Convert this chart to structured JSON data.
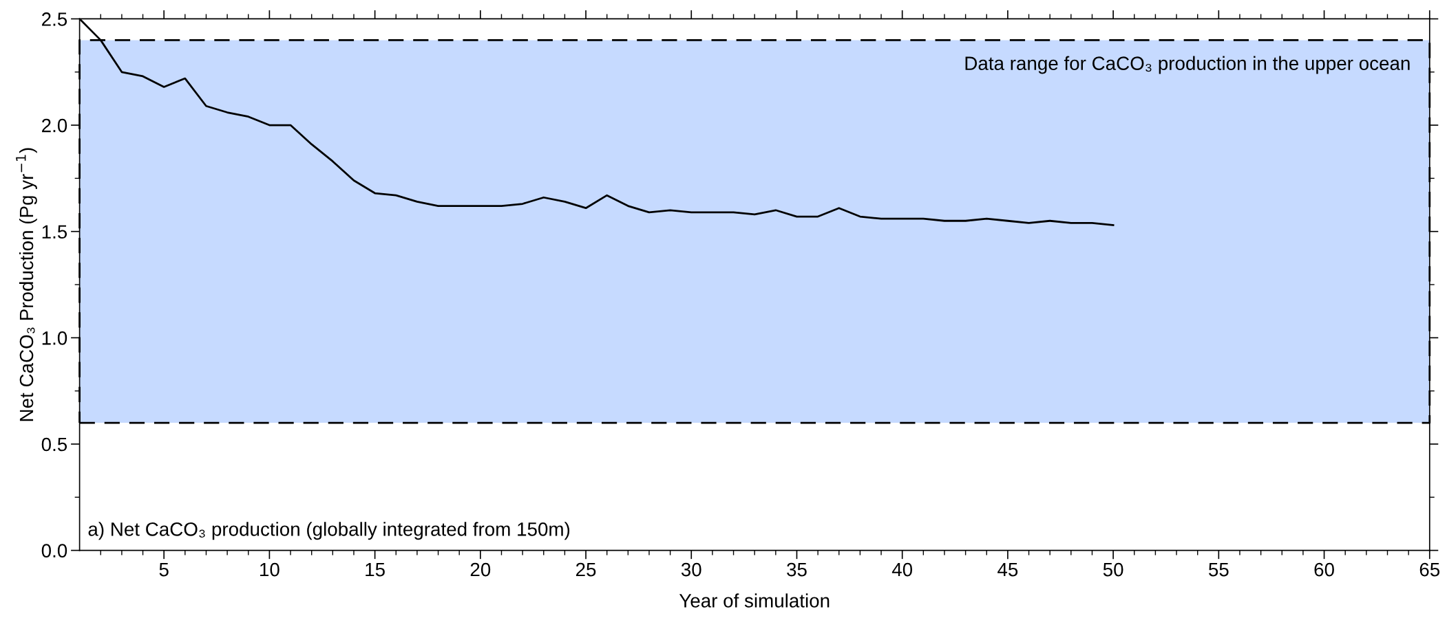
{
  "chart_data": {
    "type": "line",
    "xlabel": "Year of simulation",
    "ylabel": "Net CaCO₃ Production (Pg yr$^{−1}$)",
    "x": [
      1,
      2,
      3,
      4,
      5,
      6,
      7,
      8,
      9,
      10,
      11,
      12,
      13,
      14,
      15,
      16,
      17,
      18,
      19,
      20,
      21,
      22,
      23,
      24,
      25,
      26,
      27,
      28,
      29,
      30,
      31,
      32,
      33,
      34,
      35,
      36,
      37,
      38,
      39,
      40,
      41,
      42,
      43,
      44,
      45,
      46,
      47,
      48,
      49,
      50
    ],
    "series": [
      {
        "color": "#000000",
        "values": [
          2.5,
          2.4,
          2.25,
          2.23,
          2.18,
          2.22,
          2.09,
          2.06,
          2.04,
          2.0,
          2.0,
          1.91,
          1.83,
          1.74,
          1.68,
          1.67,
          1.64,
          1.62,
          1.62,
          1.62,
          1.62,
          1.63,
          1.66,
          1.64,
          1.61,
          1.67,
          1.62,
          1.59,
          1.6,
          1.59,
          1.59,
          1.59,
          1.58,
          1.6,
          1.57,
          1.57,
          1.61,
          1.57,
          1.56,
          1.56,
          1.56,
          1.55,
          1.55,
          1.56,
          1.55,
          1.54,
          1.55,
          1.54,
          1.54,
          1.53
        ]
      }
    ],
    "xlim": [
      1,
      65
    ],
    "ylim": [
      0,
      2.5
    ],
    "xticks": [
      {
        "value": 2,
        "label": null
      },
      {
        "value": 3,
        "label": null
      },
      {
        "value": 4,
        "label": null
      },
      5,
      {
        "value": 6,
        "label": null
      },
      {
        "value": 7,
        "label": null
      },
      {
        "value": 8,
        "label": null
      },
      {
        "value": 9,
        "label": null
      },
      10,
      {
        "value": 11,
        "label": null
      },
      {
        "value": 12,
        "label": null
      },
      {
        "value": 13,
        "label": null
      },
      {
        "value": 14,
        "label": null
      },
      15,
      {
        "value": 16,
        "label": null
      },
      {
        "value": 17,
        "label": null
      },
      {
        "value": 18,
        "label": null
      },
      {
        "value": 19,
        "label": null
      },
      20,
      {
        "value": 21,
        "label": null
      },
      {
        "value": 22,
        "label": null
      },
      {
        "value": 23,
        "label": null
      },
      {
        "value": 24,
        "label": null
      },
      25,
      {
        "value": 26,
        "label": null
      },
      {
        "value": 27,
        "label": null
      },
      {
        "value": 28,
        "label": null
      },
      {
        "value": 29,
        "label": null
      },
      30,
      {
        "value": 31,
        "label": null
      },
      {
        "value": 32,
        "label": null
      },
      {
        "value": 33,
        "label": null
      },
      {
        "value": 34,
        "label": null
      },
      35,
      {
        "value": 36,
        "label": null
      },
      {
        "value": 37,
        "label": null
      },
      {
        "value": 38,
        "label": null
      },
      {
        "value": 39,
        "label": null
      },
      40,
      {
        "value": 41,
        "label": null
      },
      {
        "value": 42,
        "label": null
      },
      {
        "value": 43,
        "label": null
      },
      {
        "value": 44,
        "label": null
      },
      45,
      {
        "value": 46,
        "label": null
      },
      {
        "value": 47,
        "label": null
      },
      {
        "value": 48,
        "label": null
      },
      {
        "value": 49,
        "label": null
      },
      50,
      {
        "value": 51,
        "label": null
      },
      {
        "value": 52,
        "label": null
      },
      {
        "value": 53,
        "label": null
      },
      {
        "value": 54,
        "label": null
      },
      55,
      {
        "value": 56,
        "label": null
      },
      {
        "value": 57,
        "label": null
      },
      {
        "value": 58,
        "label": null
      },
      {
        "value": 59,
        "label": null
      },
      60,
      {
        "value": 61,
        "label": null
      },
      {
        "value": 62,
        "label": null
      },
      {
        "value": 63,
        "label": null
      },
      {
        "value": 64,
        "label": null
      },
      65
    ],
    "yticks": [
      {
        "value": 0,
        "label": "0.0"
      },
      {
        "value": 0.25,
        "label": null
      },
      {
        "value": 0.5,
        "label": "0.5"
      },
      {
        "value": 0.75,
        "label": null
      },
      {
        "value": 1,
        "label": "1.0"
      },
      {
        "value": 1.25,
        "label": null
      },
      {
        "value": 1.5,
        "label": "1.5"
      },
      {
        "value": 1.75,
        "label": null
      },
      {
        "value": 2,
        "label": "2.0"
      },
      {
        "value": 2.25,
        "label": null
      },
      {
        "value": 2.5,
        "label": "2.5"
      }
    ],
    "bands": [
      {
        "axis": "y",
        "from": 0.6,
        "to": 2.4,
        "label": "Data range for CaCO₃ production in the upper ocean",
        "color": "#c6daff"
      }
    ],
    "annotations": [
      "a) Net CaCO₃ production (globally integrated from 150m)"
    ],
    "grid": false,
    "marker": "none",
    "line_style": "solid"
  }
}
